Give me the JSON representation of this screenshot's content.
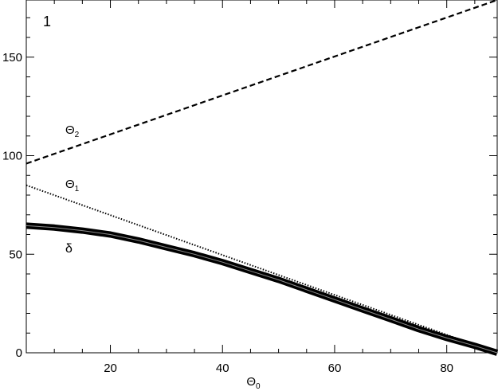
{
  "chart_data": {
    "type": "line",
    "panel_label": "1",
    "xlabel": {
      "base": "Θ",
      "sub": "0"
    },
    "ylabel": "",
    "xlim": [
      5,
      89
    ],
    "ylim": [
      0,
      179
    ],
    "xticks": [
      20,
      40,
      60,
      80
    ],
    "yticks": [
      0,
      50,
      100,
      150
    ],
    "series": [
      {
        "name": "Θ2",
        "label": {
          "base": "Θ",
          "sub": "2"
        },
        "style": "dashed",
        "x": [
          5,
          89
        ],
        "values": [
          96,
          179
        ]
      },
      {
        "name": "Θ1",
        "label": {
          "base": "Θ",
          "sub": "1"
        },
        "style": "dotted",
        "x": [
          5,
          89
        ],
        "values": [
          85,
          0
        ]
      },
      {
        "name": "δ",
        "label": {
          "base": "δ",
          "sub": ""
        },
        "style": "thick",
        "x": [
          5,
          10,
          15,
          20,
          25,
          30,
          35,
          40,
          45,
          50,
          55,
          60,
          65,
          70,
          75,
          80,
          85,
          89
        ],
        "values": [
          64.5,
          63.5,
          62,
          60,
          57,
          53.5,
          50,
          46,
          41.5,
          37,
          32,
          27,
          22,
          17,
          12,
          7.5,
          3.5,
          0
        ]
      }
    ]
  }
}
